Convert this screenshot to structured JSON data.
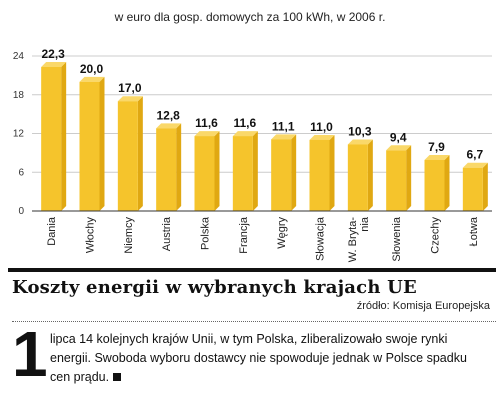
{
  "chart_data": {
    "type": "bar",
    "subtitle": "w euro dla gosp. domowych za 100 kWh, w 2006 r.",
    "categories": [
      "Dania",
      "Włochy",
      "Niemcy",
      "Austria",
      "Polska",
      "Francja",
      "Węgry",
      "Słowacja",
      "W. Bryta- nia",
      "Słowenia",
      "Czechy",
      "Łotwa"
    ],
    "values": [
      22.3,
      20.0,
      17.0,
      12.8,
      11.6,
      11.6,
      11.1,
      11.0,
      10.3,
      9.4,
      7.9,
      6.7
    ],
    "value_labels": [
      "22,3",
      "20,0",
      "17,0",
      "12,8",
      "11,6",
      "11,6",
      "11,1",
      "11,0",
      "10,3",
      "9,4",
      "7,9",
      "6,7"
    ],
    "yticks": [
      0,
      6,
      12,
      18,
      24
    ],
    "ylim": [
      0,
      24
    ],
    "grid": true,
    "colors": {
      "bar_front": "#F5C42C",
      "bar_side": "#E0A812",
      "bar_top": "#FAD869",
      "grid": "#CCCCCC",
      "axis": "#333333"
    }
  },
  "title": "Koszty energii w wybranych krajach UE",
  "source": "źródło: Komisja Europejska",
  "article": {
    "dropcap": "1",
    "text": "lipca 14 kolejnych krajów Unii, w tym Polska, zliberalizowało swoje rynki energii. Swoboda wyboru dostawcy nie spowoduje jednak w Polsce spadku cen prądu."
  }
}
